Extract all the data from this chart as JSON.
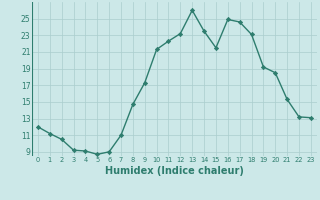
{
  "x": [
    0,
    1,
    2,
    3,
    4,
    5,
    6,
    7,
    8,
    9,
    10,
    11,
    12,
    13,
    14,
    15,
    16,
    17,
    18,
    19,
    20,
    21,
    22,
    23
  ],
  "y": [
    12.0,
    11.2,
    10.5,
    9.2,
    9.1,
    8.7,
    9.0,
    11.0,
    14.7,
    17.3,
    21.3,
    22.3,
    23.2,
    26.0,
    23.5,
    21.5,
    24.9,
    24.6,
    23.1,
    19.2,
    18.5,
    15.3,
    13.2,
    13.1
  ],
  "line_color": "#2e7d6e",
  "marker": "D",
  "marker_size": 2.2,
  "bg_color": "#cce8e8",
  "grid_color": "#aacece",
  "xlabel": "Humidex (Indice chaleur)",
  "xlabel_fontsize": 7,
  "tick_color": "#2e7d6e",
  "ylim": [
    8.5,
    27
  ],
  "xlim": [
    -0.5,
    23.5
  ],
  "yticks": [
    9,
    11,
    13,
    15,
    17,
    19,
    21,
    23,
    25
  ],
  "xticks": [
    0,
    1,
    2,
    3,
    4,
    5,
    6,
    7,
    8,
    9,
    10,
    11,
    12,
    13,
    14,
    15,
    16,
    17,
    18,
    19,
    20,
    21,
    22,
    23
  ],
  "xtick_labels": [
    "0",
    "1",
    "2",
    "3",
    "4",
    "5",
    "6",
    "7",
    "8",
    "9",
    "10",
    "11",
    "12",
    "13",
    "14",
    "15",
    "16",
    "17",
    "18",
    "19",
    "20",
    "21",
    "22",
    "23"
  ],
  "line_width": 1.0
}
